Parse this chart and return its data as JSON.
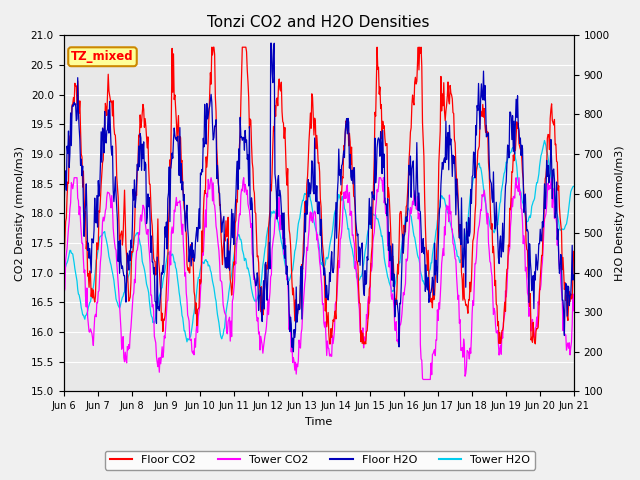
{
  "title": "Tonzi CO2 and H2O Densities",
  "xlabel": "Time",
  "ylabel_left": "CO2 Density (mmol/m3)",
  "ylabel_right": "H2O Density (mmol/m3)",
  "annotation": "TZ_mixed",
  "ylim_left": [
    15.0,
    21.0
  ],
  "ylim_right": [
    100,
    1000
  ],
  "xtick_labels": [
    "Jun 6",
    "Jun 7",
    "Jun 8",
    "Jun 9",
    "Jun 10",
    "Jun 11",
    "Jun 12",
    "Jun 13",
    "Jun 14",
    "Jun 15",
    "Jun 16",
    "Jun 17",
    "Jun 18",
    "Jun 19",
    "Jun 20",
    "Jun 21"
  ],
  "colors": {
    "floor_co2": "#ff0000",
    "tower_co2": "#ff00ff",
    "floor_h2o": "#0000bb",
    "tower_h2o": "#00ccee"
  },
  "bg_color": "#e8e8e8",
  "fig_color": "#f0f0f0",
  "title_fontsize": 11,
  "axis_fontsize": 8,
  "tick_fontsize": 7.5,
  "linewidth": 0.9
}
